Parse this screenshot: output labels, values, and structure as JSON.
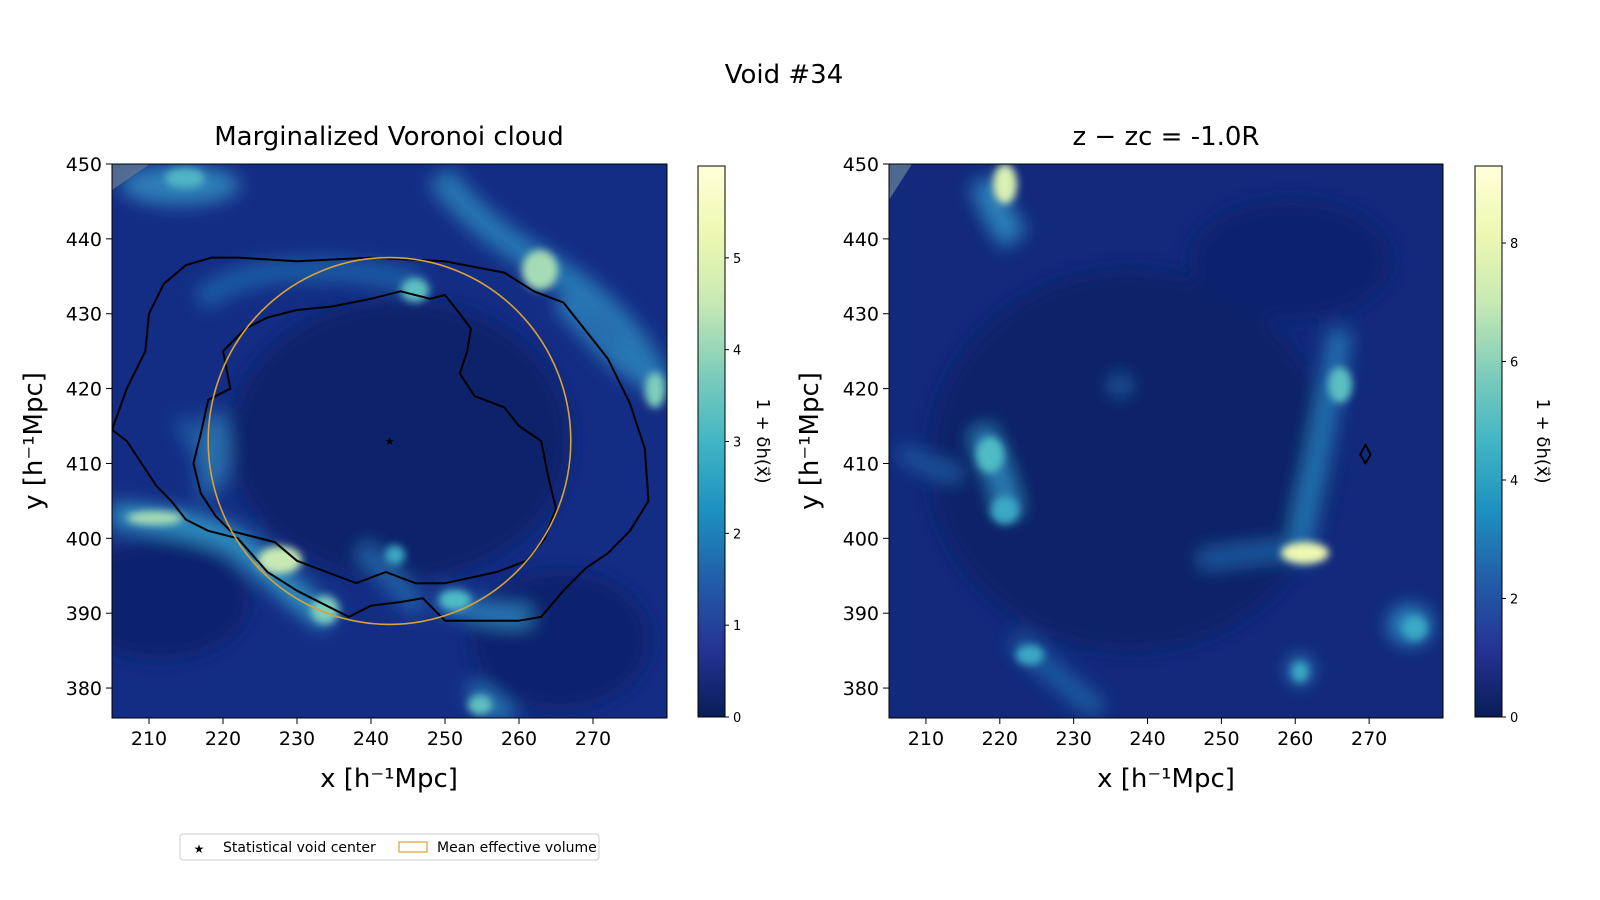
{
  "figure": {
    "suptitle": "Void #34"
  },
  "colors": {
    "void_center": "#e8a33a",
    "effective_volume": "#d9a236",
    "contour": "#000000",
    "colormap": [
      "#081d58",
      "#253494",
      "#225ea8",
      "#1d91c0",
      "#41b6c4",
      "#7fcdbb",
      "#c7e9b4",
      "#edf8b1",
      "#ffffd9"
    ]
  },
  "legend": {
    "items": [
      {
        "label": "Statistical void center",
        "marker": "star"
      },
      {
        "label": "Mean effective volume",
        "marker": "open-rectangle"
      }
    ]
  },
  "chart_data": [
    {
      "type": "heatmap",
      "title": "Marginalized Voronoi cloud",
      "xlabel": "x [h⁻¹Mpc]",
      "ylabel": "y [h⁻¹Mpc]",
      "xlim": [
        205,
        280
      ],
      "ylim": [
        376,
        450
      ],
      "xticks": [
        210,
        220,
        230,
        240,
        250,
        260,
        270
      ],
      "yticks": [
        380,
        390,
        400,
        410,
        420,
        430,
        440,
        450
      ],
      "colorbar": {
        "label": "1 + δh(x⃗)",
        "range": [
          0,
          6
        ],
        "ticks": [
          0,
          1,
          2,
          3,
          4,
          5
        ]
      },
      "void_center": {
        "x": 242.5,
        "y": 413
      },
      "effective_volume_circle": {
        "cx": 242.5,
        "cy": 413,
        "r": 24.5
      },
      "contours": [
        [
          [
            222,
            437.5
          ],
          [
            230,
            437
          ],
          [
            240,
            437.5
          ],
          [
            250,
            437
          ],
          [
            258,
            435.5
          ],
          [
            262,
            433
          ],
          [
            266,
            431.5
          ],
          [
            272,
            424
          ],
          [
            275,
            418
          ],
          [
            277,
            412
          ],
          [
            277.5,
            405
          ],
          [
            275,
            401
          ],
          [
            272,
            398
          ],
          [
            269,
            396
          ],
          [
            266,
            393
          ],
          [
            263,
            389.5
          ],
          [
            260,
            389
          ],
          [
            255,
            389
          ],
          [
            250,
            389
          ],
          [
            247,
            392
          ],
          [
            244,
            391.5
          ],
          [
            240,
            391
          ],
          [
            237,
            389.5
          ],
          [
            234,
            391
          ],
          [
            230,
            393
          ],
          [
            226,
            395.5
          ],
          [
            222,
            400
          ],
          [
            218,
            401
          ],
          [
            215,
            402.5
          ],
          [
            213,
            405
          ],
          [
            211,
            407
          ],
          [
            209,
            410
          ],
          [
            207,
            413
          ],
          [
            205,
            414.5
          ],
          [
            207,
            420
          ],
          [
            209.5,
            425
          ],
          [
            210,
            430
          ],
          [
            212,
            434
          ],
          [
            215,
            436.5
          ],
          [
            218.5,
            437.5
          ],
          [
            222,
            437.5
          ]
        ],
        [
          [
            230,
            430.5
          ],
          [
            235,
            431
          ],
          [
            240,
            432
          ],
          [
            244,
            433
          ],
          [
            248,
            432
          ],
          [
            250,
            432.5
          ],
          [
            252,
            430
          ],
          [
            253.5,
            428
          ],
          [
            253,
            425
          ],
          [
            252,
            422
          ],
          [
            254,
            419
          ],
          [
            258,
            417.5
          ],
          [
            260,
            415
          ],
          [
            263,
            413
          ],
          [
            264,
            408
          ],
          [
            265,
            404
          ],
          [
            263.5,
            400
          ],
          [
            261,
            397
          ],
          [
            257,
            395.5
          ],
          [
            250,
            394
          ],
          [
            246,
            394
          ],
          [
            242,
            395.5
          ],
          [
            238,
            394
          ],
          [
            234,
            395.5
          ],
          [
            230,
            397
          ],
          [
            227,
            399.5
          ],
          [
            223,
            400.5
          ],
          [
            221,
            401
          ],
          [
            219,
            403
          ],
          [
            217,
            406
          ],
          [
            216,
            410
          ],
          [
            217,
            414
          ],
          [
            218,
            418.5
          ],
          [
            221,
            420
          ],
          [
            220,
            425
          ],
          [
            223,
            428
          ],
          [
            226,
            429.5
          ],
          [
            230,
            430.5
          ]
        ]
      ]
    },
    {
      "type": "heatmap",
      "title": "z − zc = -1.0R",
      "xlabel": "x [h⁻¹Mpc]",
      "ylabel": "y [h⁻¹Mpc]",
      "xlim": [
        205,
        280
      ],
      "ylim": [
        376,
        450
      ],
      "xticks": [
        210,
        220,
        230,
        240,
        250,
        260,
        270
      ],
      "yticks": [
        380,
        390,
        400,
        410,
        420,
        430,
        440,
        450
      ],
      "colorbar": {
        "label": "1 + δh(x⃗)",
        "range": [
          0,
          9.3
        ],
        "ticks": [
          0,
          2,
          4,
          6,
          8
        ]
      },
      "contours": [
        [
          [
            269.5,
            412.5
          ],
          [
            270.2,
            411.2
          ],
          [
            269.5,
            410
          ],
          [
            268.8,
            411.2
          ],
          [
            269.5,
            412.5
          ]
        ]
      ]
    }
  ]
}
